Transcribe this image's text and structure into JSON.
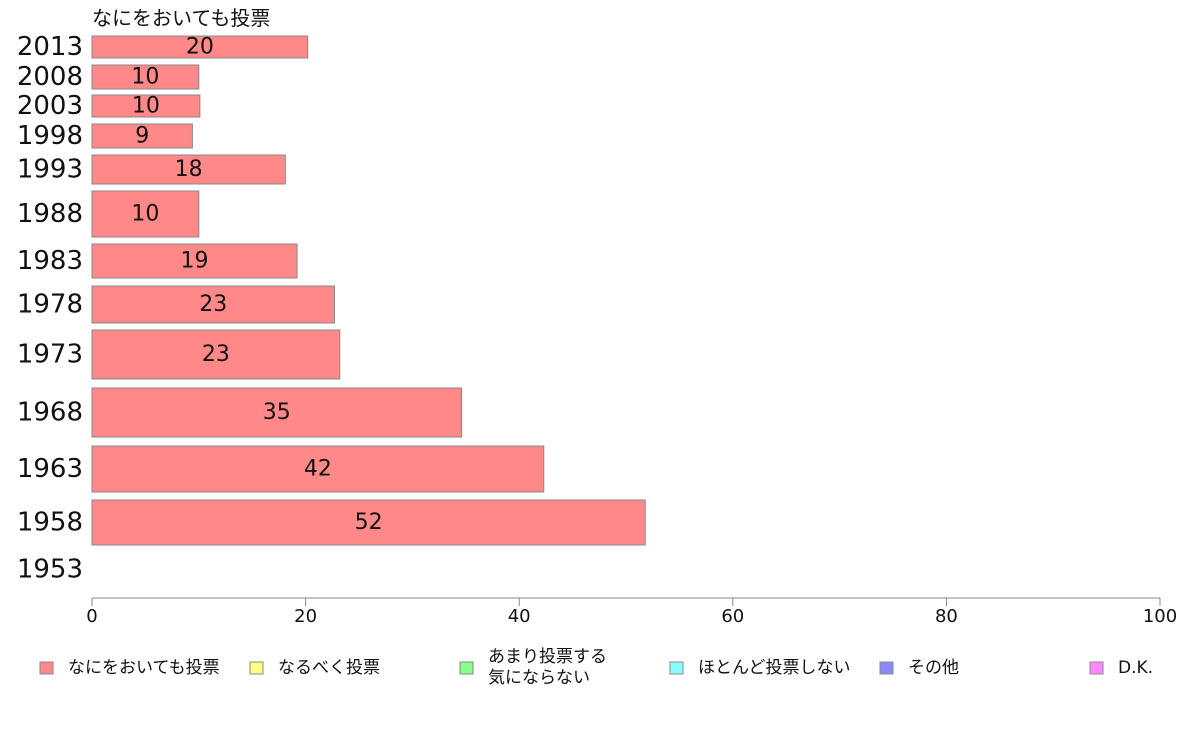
{
  "chart_data": {
    "type": "bar",
    "orientation": "horizontal",
    "title": "なにをおいても投票",
    "categories": [
      "2013",
      "2008",
      "2003",
      "1998",
      "1993",
      "1988",
      "1983",
      "1978",
      "1973",
      "1968",
      "1963",
      "1958",
      "1953"
    ],
    "series": [
      {
        "name": "なにをおいても投票",
        "color": "#ff8888",
        "values": [
          20.2,
          10,
          10.1,
          9.4,
          18.1,
          10,
          19.2,
          22.7,
          23.2,
          34.6,
          42.3,
          51.8,
          null
        ],
        "labels": [
          "20",
          "10",
          "10",
          "9",
          "18",
          "10",
          "19",
          "23",
          "23",
          "35",
          "42",
          "52",
          ""
        ]
      }
    ],
    "xlim": [
      0,
      100
    ],
    "xticks": [
      "0",
      "20",
      "40",
      "60",
      "80",
      "100"
    ],
    "grid": false,
    "legend": {
      "placement": "bottom",
      "items": [
        {
          "label": "なにをおいても投票",
          "color": "#ff8888"
        },
        {
          "label": "なるべく投票",
          "color": "#ffff88"
        },
        {
          "label": "あまり投票する\n気にならない",
          "color": "#88ff88"
        },
        {
          "label": "ほとんど投票しない",
          "color": "#88ffff"
        },
        {
          "label": "その他",
          "color": "#8888ff"
        },
        {
          "label": "D.K.",
          "color": "#ff88ff"
        }
      ]
    }
  }
}
